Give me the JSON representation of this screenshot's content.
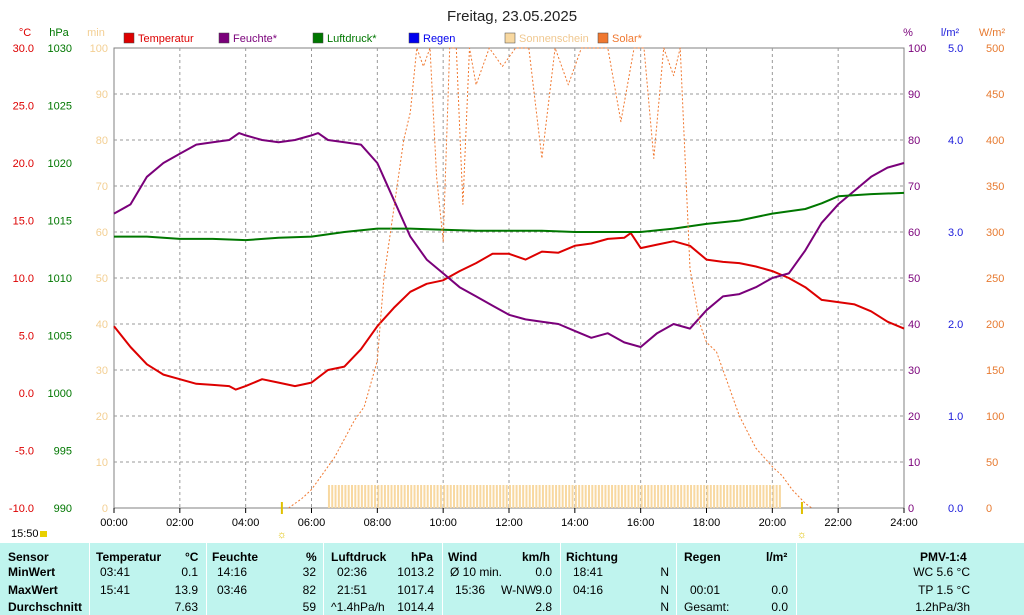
{
  "chart_data": {
    "type": "line",
    "title": "Freitag, 23.05.2025",
    "time_label": "15:50",
    "x_ticks": [
      "00:00",
      "02:00",
      "04:00",
      "06:00",
      "08:00",
      "10:00",
      "12:00",
      "14:00",
      "16:00",
      "18:00",
      "20:00",
      "22:00",
      "24:00"
    ],
    "axes": [
      {
        "key": "temp",
        "unit": "°C",
        "color": "#dd0000",
        "min": -10,
        "max": 30,
        "ticks": [
          "30.0",
          "25.0",
          "20.0",
          "15.0",
          "10.0",
          "5.0",
          "0.0",
          "-5.0",
          "-10.0"
        ]
      },
      {
        "key": "hpa",
        "unit": "hPa",
        "color": "#007700",
        "min": 990,
        "max": 1030,
        "ticks": [
          "1030",
          "1025",
          "1020",
          "1015",
          "1010",
          "1005",
          "1000",
          "995",
          "990"
        ]
      },
      {
        "key": "min",
        "unit": "min",
        "color": "#f3cf93",
        "min": 0,
        "max": 100,
        "ticks": [
          "100",
          "90",
          "80",
          "70",
          "60",
          "50",
          "40",
          "30",
          "20",
          "10",
          "0"
        ]
      },
      {
        "key": "pct",
        "unit": "%",
        "color": "#7a007a",
        "min": 0,
        "max": 100,
        "ticks": [
          "100",
          "90",
          "80",
          "70",
          "60",
          "50",
          "40",
          "30",
          "20",
          "10",
          "0"
        ]
      },
      {
        "key": "rain",
        "unit": "l/m²",
        "color": "#1a1adb",
        "min": 0,
        "max": 5,
        "ticks": [
          "5.0",
          "4.0",
          "3.0",
          "2.0",
          "1.0",
          "0.0"
        ]
      },
      {
        "key": "solar",
        "unit": "W/m²",
        "color": "#e77a30",
        "min": 0,
        "max": 500,
        "ticks": [
          "500",
          "450",
          "400",
          "350",
          "300",
          "250",
          "200",
          "150",
          "100",
          "50",
          "0"
        ]
      }
    ],
    "legend": [
      {
        "label": "Temperatur",
        "color": "#dd0000"
      },
      {
        "label": "Feuchte*",
        "color": "#7a007a"
      },
      {
        "label": "Luftdruck*",
        "color": "#007700"
      },
      {
        "label": "Regen",
        "color": "#0000ee"
      },
      {
        "label": "Sonnenschein",
        "color": "#f8d8a0"
      },
      {
        "label": "Solar*",
        "color": "#f07830"
      }
    ],
    "series": [
      {
        "name": "Temperatur",
        "axis": "temp",
        "color": "#dd0000",
        "x": [
          0,
          0.5,
          1,
          1.5,
          2,
          2.5,
          3,
          3.5,
          3.7,
          4,
          4.5,
          5,
          5.5,
          6,
          6.5,
          7,
          7.5,
          8,
          8.5,
          9,
          9.5,
          10,
          10.5,
          11,
          11.5,
          12,
          12.5,
          13,
          13.5,
          14,
          14.5,
          15,
          15.5,
          15.7,
          16,
          16.5,
          17,
          17.5,
          18,
          18.5,
          19,
          19.5,
          20,
          20.5,
          21,
          21.5,
          22,
          22.5,
          23,
          23.5,
          24
        ],
        "y": [
          5.8,
          4.0,
          2.5,
          1.6,
          1.2,
          0.8,
          0.7,
          0.6,
          0.3,
          0.6,
          1.2,
          0.9,
          0.6,
          0.9,
          2.0,
          2.3,
          3.8,
          5.8,
          7.4,
          8.8,
          9.5,
          9.8,
          10.6,
          11.3,
          12.1,
          12.1,
          11.6,
          12.3,
          12.2,
          12.8,
          13.0,
          13.4,
          13.5,
          13.9,
          12.6,
          12.9,
          13.2,
          12.8,
          11.6,
          11.4,
          11.3,
          11.0,
          10.6,
          10.0,
          9.2,
          8.1,
          7.9,
          7.7,
          7.1,
          6.2,
          5.6
        ]
      },
      {
        "name": "Feuchte*",
        "axis": "pct",
        "color": "#7a007a",
        "x": [
          0,
          0.5,
          1,
          1.5,
          2,
          2.5,
          3,
          3.5,
          3.8,
          4,
          4.5,
          5,
          5.5,
          6,
          6.2,
          6.5,
          7,
          7.5,
          8,
          8.5,
          9,
          9.5,
          10,
          10.5,
          11,
          11.5,
          12,
          12.5,
          13,
          13.5,
          14,
          14.5,
          15,
          15.5,
          16,
          16.5,
          17,
          17.5,
          18,
          18.5,
          19,
          19.5,
          20,
          20.5,
          21,
          21.5,
          22,
          22.5,
          23,
          23.5,
          24
        ],
        "y": [
          64,
          66,
          72,
          75,
          77,
          79,
          79.5,
          80,
          81.5,
          81,
          80,
          79.5,
          80,
          81,
          81.5,
          80,
          79.5,
          79,
          75,
          67,
          59,
          54,
          51,
          48,
          46,
          44,
          42,
          41,
          40.5,
          40,
          38.5,
          37,
          38,
          36,
          35,
          38,
          40,
          39,
          43,
          46,
          46.5,
          48,
          50,
          51,
          56,
          62,
          66,
          69,
          72,
          74,
          75
        ]
      },
      {
        "name": "Luftdruck*",
        "axis": "hpa",
        "color": "#007700",
        "x": [
          0,
          1,
          2,
          3,
          4,
          5,
          6,
          7,
          8,
          9,
          10,
          11,
          12,
          13,
          14,
          15,
          16,
          17,
          18,
          19,
          20,
          21,
          21.5,
          22,
          23,
          24
        ],
        "y": [
          1013.6,
          1013.6,
          1013.4,
          1013.4,
          1013.3,
          1013.5,
          1013.6,
          1014.0,
          1014.3,
          1014.3,
          1014.2,
          1014.1,
          1014.1,
          1014.1,
          1014.0,
          1014.0,
          1014.0,
          1014.3,
          1014.7,
          1015.0,
          1015.6,
          1016.0,
          1016.5,
          1017.1,
          1017.3,
          1017.4
        ]
      },
      {
        "name": "Solar*",
        "axis": "solar",
        "color": "#f07830",
        "x": [
          5.3,
          5.7,
          6,
          6.3,
          6.7,
          7,
          7.3,
          7.6,
          8,
          8.2,
          8.4,
          8.6,
          8.8,
          9,
          9.2,
          9.4,
          9.6,
          9.8,
          10,
          10.2,
          10.4,
          10.6,
          10.8,
          11,
          11.4,
          11.8,
          12.2,
          12.6,
          13,
          13.4,
          13.8,
          14.2,
          14.6,
          15,
          15.4,
          15.8,
          16.1,
          16.4,
          16.7,
          17,
          17.2,
          17.5,
          17.8,
          18,
          18.3,
          18.6,
          19,
          19.5,
          20,
          20.3,
          20.6,
          21,
          21.2
        ],
        "y": [
          0,
          10,
          20,
          35,
          55,
          75,
          95,
          110,
          160,
          250,
          300,
          350,
          400,
          430,
          500,
          480,
          500,
          360,
          290,
          500,
          500,
          330,
          500,
          460,
          500,
          480,
          500,
          500,
          380,
          500,
          460,
          500,
          500,
          500,
          420,
          500,
          500,
          380,
          500,
          470,
          500,
          260,
          200,
          180,
          170,
          140,
          100,
          65,
          45,
          35,
          20,
          5,
          0
        ]
      }
    ],
    "sunshine_bars": {
      "label": "Sonnenschein",
      "axis": "min",
      "from": 6.5,
      "to": 20.3,
      "value": 5
    },
    "markers": [
      {
        "x": 5.1,
        "symbol": "☼",
        "color": "#e0c000"
      },
      {
        "x": 20.9,
        "symbol": "☼",
        "color": "#e0c000"
      }
    ]
  },
  "table": {
    "headers": {
      "sensor": "Sensor",
      "temp": "Temperatur",
      "temp_unit": "°C",
      "feuchte": "Feuchte",
      "feuchte_unit": "%",
      "druck": "Luftdruck",
      "druck_unit": "hPa",
      "wind": "Wind",
      "wind_unit": "km/h",
      "richtung": "Richtung",
      "regen": "Regen",
      "regen_unit": "l/m²",
      "pmv": "PMV-1:4"
    },
    "rows": [
      {
        "label": "MinWert",
        "temp_time": "03:41",
        "temp_val": "0.1",
        "feuchte_time": "14:16",
        "feuchte_val": "32",
        "druck_time": "02:36",
        "druck_val": "1013.2",
        "wind_time": "Ø 10 min.",
        "wind_dir": "",
        "wind_val": "0.0",
        "richt_time": "18:41",
        "richt_val": "N",
        "regen_time": "",
        "regen_val": "",
        "pmv": "WC 5.6 °C"
      },
      {
        "label": "MaxWert",
        "temp_time": "15:41",
        "temp_val": "13.9",
        "feuchte_time": "03:46",
        "feuchte_val": "82",
        "druck_time": "21:51",
        "druck_val": "1017.4",
        "wind_time": "15:36",
        "wind_dir": "W-NW",
        "wind_val": "9.0",
        "richt_time": "04:16",
        "richt_val": "N",
        "regen_time": "00:01",
        "regen_val": "0.0",
        "pmv": "TP 1.5 °C"
      },
      {
        "label": "Durchschnitt",
        "temp_time": "",
        "temp_val": "7.63",
        "feuchte_time": "",
        "feuchte_val": "59",
        "druck_time": "^1.4hPa/h",
        "druck_val": "1014.4",
        "wind_time": "",
        "wind_dir": "",
        "wind_val": "2.8",
        "richt_time": "",
        "richt_val": "N",
        "regen_time": "Gesamt:",
        "regen_val": "0.0",
        "pmv": "1.2hPa/3h"
      }
    ]
  }
}
